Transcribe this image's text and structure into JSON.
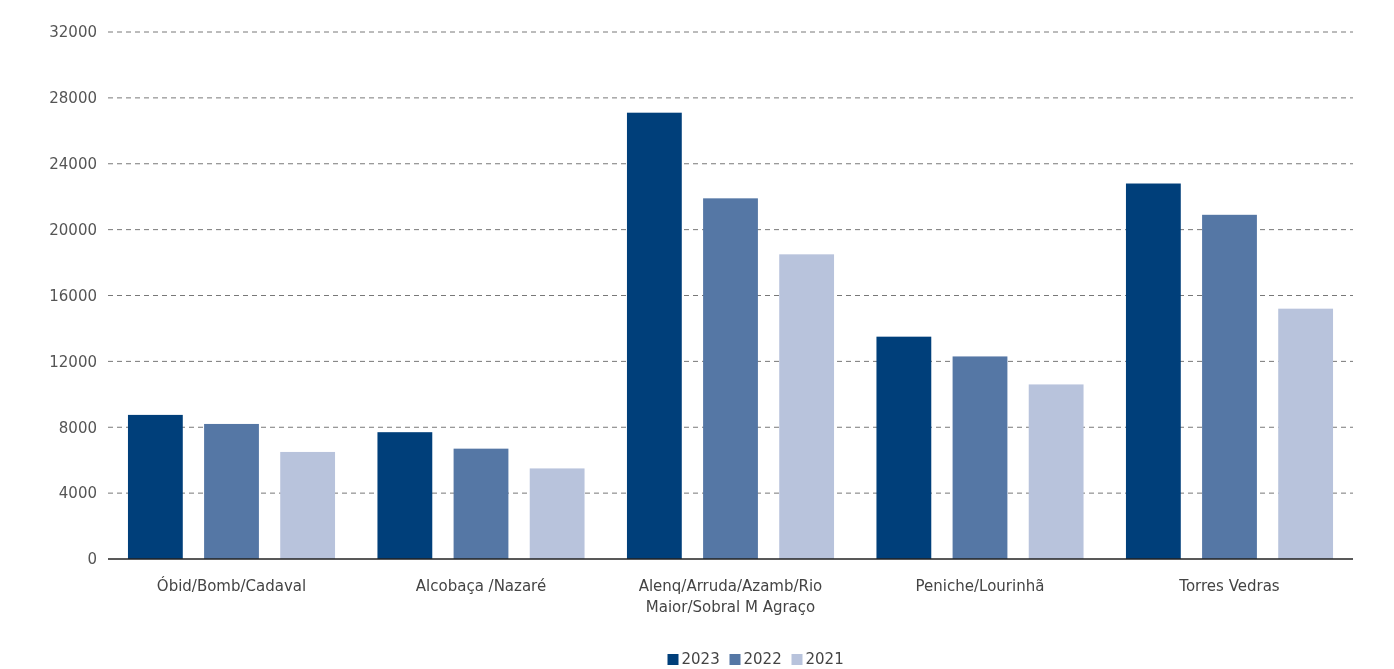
{
  "chart_data": {
    "type": "bar",
    "categories": [
      "Óbid/Bomb/Cadaval",
      "Alcobaça /Nazaré",
      "Alenq/Arruda/Azamb/Rio Maior/Sobral M Agraço",
      "Peniche/Lourinhã",
      "Torres Vedras"
    ],
    "series": [
      {
        "name": "2023",
        "color": "#003f7a",
        "values": [
          8750,
          7700,
          27100,
          13500,
          22800
        ]
      },
      {
        "name": "2022",
        "color": "#5577a5",
        "values": [
          8200,
          6700,
          21900,
          12300,
          20900
        ]
      },
      {
        "name": "2021",
        "color": "#b8c3dc",
        "values": [
          6500,
          5500,
          18500,
          10600,
          15200
        ]
      }
    ],
    "ylim": [
      0,
      32000
    ],
    "yticks": [
      0,
      4000,
      8000,
      12000,
      16000,
      20000,
      24000,
      28000,
      32000
    ],
    "grid": "y",
    "legend": "bottom"
  }
}
